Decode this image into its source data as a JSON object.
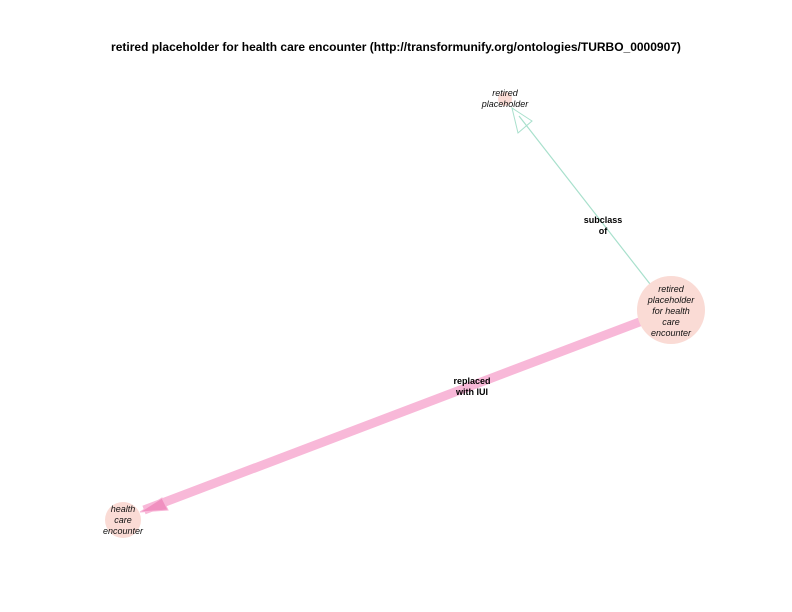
{
  "title": "retired placeholder for health care encounter (http://transformunify.org/ontologies/TURBO_0000907)",
  "colors": {
    "node_fill": "#fadbd5",
    "edge_subclass": "#a8e0cc",
    "edge_replaced": "#f8b8d8",
    "arrow_replaced": "#f090c0"
  },
  "nodes": [
    {
      "id": "retired-placeholder",
      "lines": [
        "retired",
        "placeholder"
      ]
    },
    {
      "id": "retired-placeholder-hce",
      "lines": [
        "retired",
        "placeholder",
        "for health",
        "care",
        "encounter"
      ]
    },
    {
      "id": "health-care-encounter",
      "lines": [
        "health",
        "care",
        "encounter"
      ]
    }
  ],
  "edges": [
    {
      "id": "subclass-of",
      "from": "retired-placeholder-hce",
      "to": "retired-placeholder",
      "label_lines": [
        "subclass",
        "of"
      ]
    },
    {
      "id": "replaced-with-iui",
      "from": "retired-placeholder-hce",
      "to": "health-care-encounter",
      "label_lines": [
        "replaced",
        "with IUI"
      ]
    }
  ]
}
